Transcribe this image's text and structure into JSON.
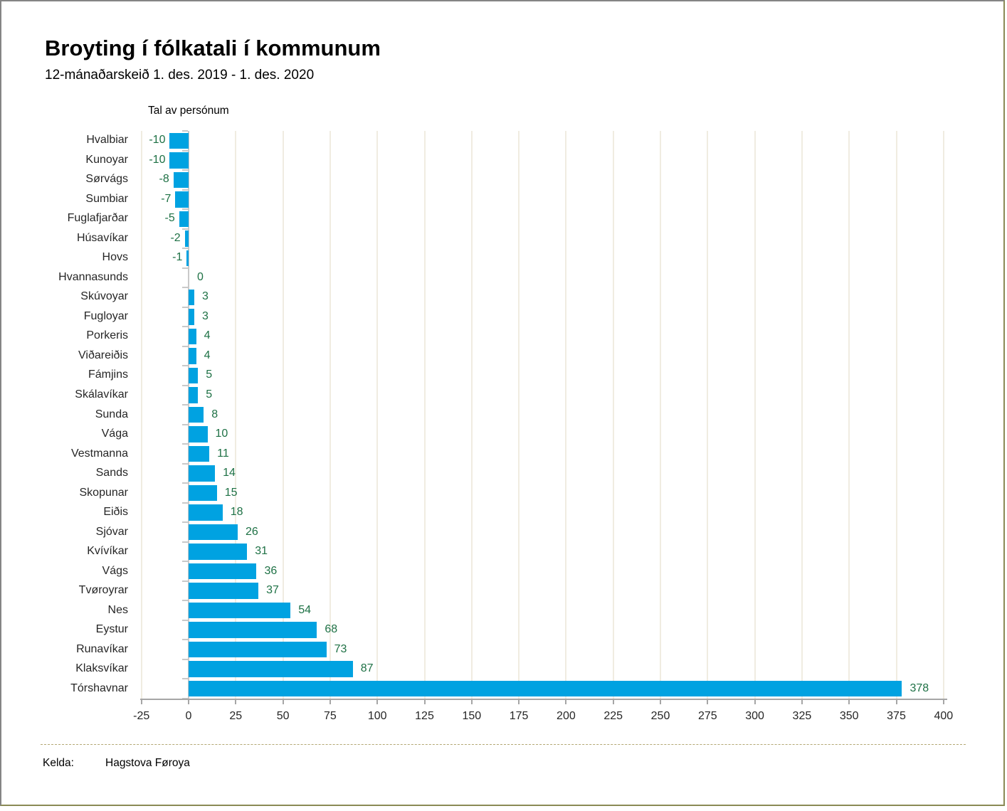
{
  "header": {
    "title": "Broyting í fólkatali í kommunum",
    "subtitle": "12-mánaðarskeið 1. des. 2019 - 1. des. 2020"
  },
  "chart_data": {
    "type": "bar",
    "orientation": "horizontal",
    "title": "Broyting í fólkatali í kommunum",
    "subtitle": "12-mánaðarskeið 1. des. 2019 - 1. des. 2020",
    "value_axis_title": "Tal av persónum",
    "categories": [
      "Hvalbiar",
      "Kunoyar",
      "Sørvágs",
      "Sumbiar",
      "Fuglafjarðar",
      "Húsavíkar",
      "Hovs",
      "Hvannasunds",
      "Skúvoyar",
      "Fugloyar",
      "Porkeris",
      "Viðareiðis",
      "Fámjins",
      "Skálavíkar",
      "Sunda",
      "Vága",
      "Vestmanna",
      "Sands",
      "Skopunar",
      "Eiðis",
      "Sjóvar",
      "Kvívíkar",
      "Vágs",
      "Tvøroyrar",
      "Nes",
      "Eystur",
      "Runavíkar",
      "Klaksvíkar",
      "Tórshavnar"
    ],
    "values": [
      -10,
      -10,
      -8,
      -7,
      -5,
      -2,
      -1,
      0,
      3,
      3,
      4,
      4,
      5,
      5,
      8,
      10,
      11,
      14,
      15,
      18,
      26,
      31,
      36,
      37,
      54,
      68,
      73,
      87,
      378
    ],
    "x_ticks": [
      -25,
      0,
      25,
      50,
      75,
      100,
      125,
      150,
      175,
      200,
      225,
      250,
      275,
      300,
      325,
      350,
      375,
      400
    ],
    "xlim": [
      -25,
      400
    ],
    "grid": true,
    "legend": "none",
    "colors": {
      "bar": "#00a2e1",
      "value_label": "#1e7145",
      "gridline": "#f0ece1",
      "axis": "#a6a6a6",
      "category_axis": "#c9c9c9"
    }
  },
  "footer": {
    "source_label": "Kelda:",
    "source_value": "Hagstova Føroya"
  }
}
